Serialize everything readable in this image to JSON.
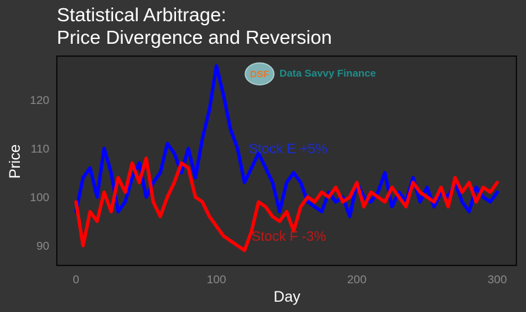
{
  "chart_data": {
    "type": "line",
    "title_lines": [
      "Statistical Arbitrage:",
      "Price Divergence and Reversion"
    ],
    "xlabel": "Day",
    "ylabel": "Price",
    "xlim": [
      -5,
      305
    ],
    "ylim": [
      86,
      116
    ],
    "x_ticks": [
      0,
      100,
      200,
      300
    ],
    "y_ticks": [
      90,
      100,
      110,
      120
    ],
    "grid": false,
    "logo": {
      "monogram": "DSF",
      "text": "Data Savvy Finance"
    },
    "annotations": [
      {
        "text": "Stock E +5%",
        "x": 123,
        "y": 109,
        "color": "#1a2bd8"
      },
      {
        "text": "Stock F -3%",
        "x": 125,
        "y": 91,
        "color": "#c01818"
      }
    ],
    "series": [
      {
        "color": "#0000ff",
        "x": [
          0,
          5,
          10,
          15,
          20,
          25,
          30,
          35,
          40,
          45,
          50,
          55,
          60,
          65,
          70,
          75,
          80,
          85,
          90,
          95,
          100,
          105,
          110,
          115,
          120,
          125,
          130,
          135,
          140,
          145,
          150,
          155,
          160,
          165,
          170,
          175,
          180,
          185,
          190,
          195,
          200,
          205,
          210,
          215,
          220,
          225,
          230,
          235,
          240,
          245,
          250,
          255,
          260,
          265,
          270,
          275,
          280,
          285,
          290,
          295,
          300
        ],
        "values": [
          97,
          104,
          106,
          100,
          110,
          105,
          97,
          99,
          104,
          107,
          100,
          103,
          105,
          111,
          109,
          105,
          110,
          104,
          112,
          118,
          127,
          121,
          114,
          110,
          103,
          106,
          109,
          106,
          103,
          97,
          103,
          105,
          103,
          99,
          98,
          97,
          101,
          99,
          100,
          96,
          103,
          100,
          99,
          101,
          105,
          98,
          101,
          99,
          104,
          99,
          102,
          98,
          101,
          100,
          103,
          99,
          97,
          102,
          100,
          99,
          101
        ]
      },
      {
        "color": "#ff0000",
        "x": [
          0,
          5,
          10,
          15,
          20,
          25,
          30,
          35,
          40,
          45,
          50,
          55,
          60,
          65,
          70,
          75,
          80,
          85,
          90,
          95,
          100,
          105,
          110,
          115,
          120,
          125,
          130,
          135,
          140,
          145,
          150,
          155,
          160,
          165,
          170,
          175,
          180,
          185,
          190,
          195,
          200,
          205,
          210,
          215,
          220,
          225,
          230,
          235,
          240,
          245,
          250,
          255,
          260,
          265,
          270,
          275,
          280,
          285,
          290,
          295,
          300
        ],
        "values": [
          99,
          90,
          97,
          95,
          101,
          97,
          104,
          101,
          107,
          103,
          108,
          99,
          96,
          100,
          103,
          107,
          106,
          100,
          99,
          96,
          94,
          92,
          91,
          90,
          89,
          93,
          99,
          98,
          96,
          95,
          97,
          93,
          98,
          100,
          99,
          101,
          100,
          102,
          99,
          100,
          103,
          98,
          101,
          100,
          99,
          102,
          100,
          98,
          103,
          101,
          100,
          99,
          102,
          98,
          104,
          101,
          103,
          99,
          102,
          101,
          103
        ]
      }
    ]
  }
}
